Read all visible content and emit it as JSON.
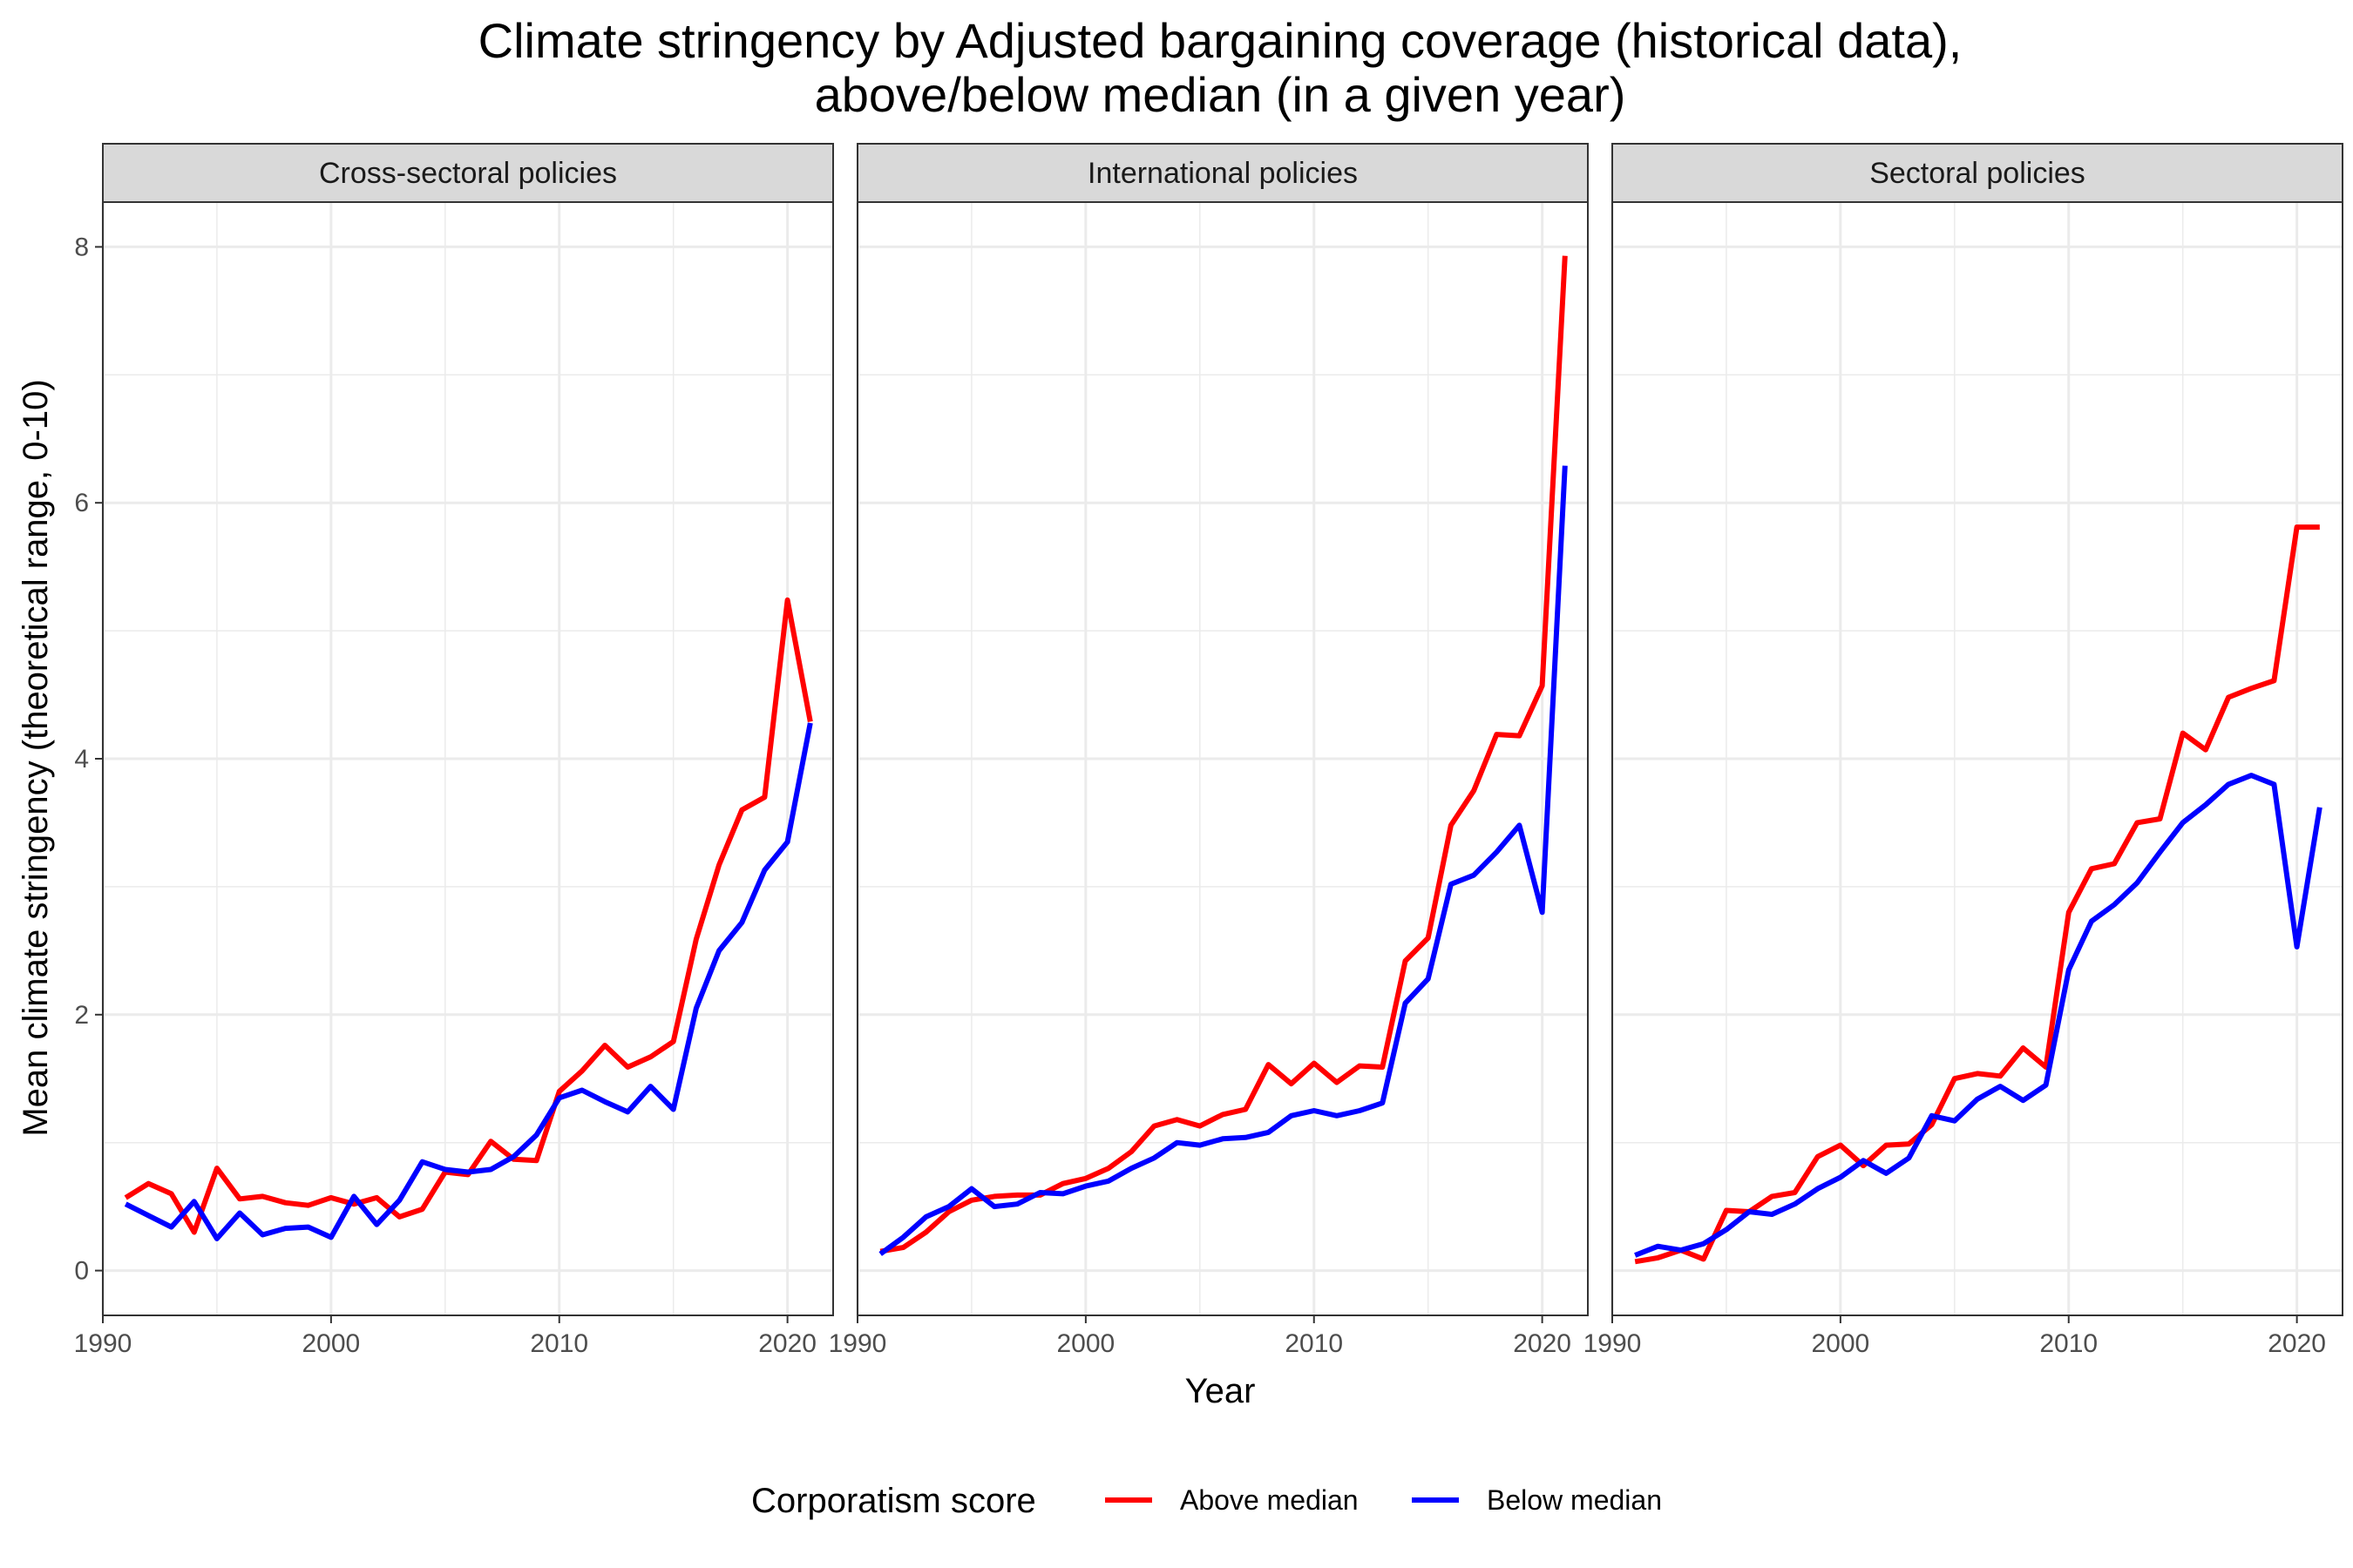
{
  "colors": {
    "above": "#FF0000",
    "below": "#0000FF",
    "strip_bg": "#D9D9D9",
    "panel_border": "#333333",
    "grid": "#EBEBEB"
  },
  "chart_data": {
    "type": "line",
    "title_line1": "Climate stringency by Adjusted bargaining coverage (historical data),",
    "title_line2": "above/below median (in a given year)",
    "xlabel": "Year",
    "ylabel": "Mean climate stringency (theoretical range, 0-10)",
    "xlim": [
      1990,
      2022
    ],
    "ylim": [
      -0.35,
      8.35
    ],
    "x_ticks": [
      1990,
      2000,
      2010,
      2020
    ],
    "y_ticks": [
      0,
      2,
      4,
      6,
      8
    ],
    "grid": true,
    "legend": {
      "title": "Corporatism score",
      "position": "bottom",
      "entries": [
        "Above median",
        "Below median"
      ]
    },
    "years": [
      1991,
      1992,
      1993,
      1994,
      1995,
      1996,
      1997,
      1998,
      1999,
      2000,
      2001,
      2002,
      2003,
      2004,
      2005,
      2006,
      2007,
      2008,
      2009,
      2010,
      2011,
      2012,
      2013,
      2014,
      2015,
      2016,
      2017,
      2018,
      2019,
      2020,
      2021
    ],
    "panels": [
      {
        "title": "Cross-sectoral policies",
        "series": [
          {
            "name": "Above median",
            "values": [
              0.57,
              0.68,
              0.6,
              0.3,
              0.8,
              0.56,
              0.58,
              0.53,
              0.51,
              0.57,
              0.52,
              0.57,
              0.42,
              0.48,
              0.77,
              0.75,
              1.01,
              0.87,
              0.86,
              1.4,
              1.56,
              1.76,
              1.59,
              1.67,
              1.79,
              2.59,
              3.17,
              3.6,
              3.7,
              5.24,
              4.29
            ]
          },
          {
            "name": "Below median",
            "values": [
              0.52,
              0.43,
              0.34,
              0.54,
              0.25,
              0.45,
              0.28,
              0.33,
              0.34,
              0.26,
              0.58,
              0.36,
              0.55,
              0.85,
              0.79,
              0.77,
              0.79,
              0.89,
              1.06,
              1.35,
              1.41,
              1.32,
              1.24,
              1.44,
              1.26,
              2.05,
              2.5,
              2.72,
              3.13,
              3.35,
              4.28
            ]
          }
        ]
      },
      {
        "title": "International policies",
        "series": [
          {
            "name": "Above median",
            "values": [
              0.15,
              0.18,
              0.3,
              0.46,
              0.55,
              0.58,
              0.59,
              0.59,
              0.68,
              0.72,
              0.8,
              0.93,
              1.13,
              1.18,
              1.13,
              1.22,
              1.26,
              1.61,
              1.46,
              1.62,
              1.47,
              1.6,
              1.59,
              2.42,
              2.6,
              3.48,
              3.75,
              4.19,
              4.18,
              4.57,
              7.93
            ]
          },
          {
            "name": "Below median",
            "values": [
              0.13,
              0.26,
              0.42,
              0.5,
              0.64,
              0.5,
              0.52,
              0.61,
              0.6,
              0.66,
              0.7,
              0.8,
              0.88,
              1.0,
              0.98,
              1.03,
              1.04,
              1.08,
              1.21,
              1.25,
              1.21,
              1.25,
              1.31,
              2.09,
              2.28,
              3.02,
              3.09,
              3.27,
              3.48,
              2.8,
              6.29
            ]
          }
        ]
      },
      {
        "title": "Sectoral policies",
        "series": [
          {
            "name": "Above median",
            "values": [
              0.07,
              0.1,
              0.16,
              0.09,
              0.47,
              0.46,
              0.58,
              0.61,
              0.89,
              0.98,
              0.82,
              0.98,
              0.99,
              1.14,
              1.5,
              1.54,
              1.52,
              1.74,
              1.59,
              2.8,
              3.14,
              3.18,
              3.5,
              3.53,
              4.2,
              4.07,
              4.48,
              4.55,
              4.61,
              5.81,
              5.81
            ]
          },
          {
            "name": "Below median",
            "values": [
              0.12,
              0.19,
              0.16,
              0.21,
              0.32,
              0.46,
              0.44,
              0.52,
              0.64,
              0.73,
              0.86,
              0.76,
              0.88,
              1.21,
              1.17,
              1.34,
              1.44,
              1.33,
              1.45,
              2.35,
              2.73,
              2.86,
              3.03,
              3.27,
              3.5,
              3.64,
              3.8,
              3.87,
              3.8,
              2.53,
              3.62
            ]
          }
        ]
      }
    ]
  }
}
